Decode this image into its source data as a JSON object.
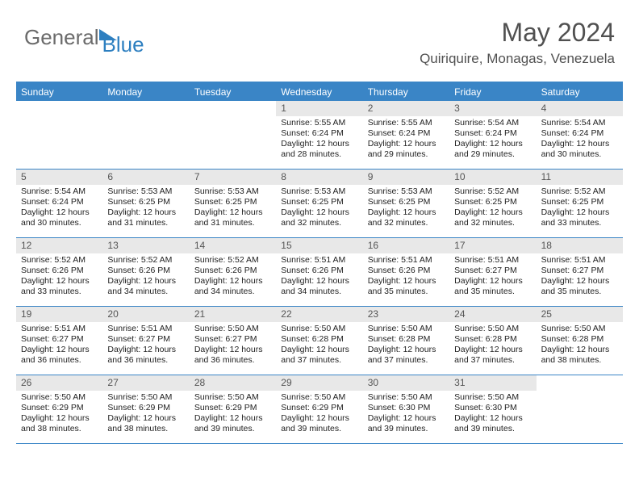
{
  "logo": {
    "part1": "General",
    "part2": "Blue"
  },
  "title": "May 2024",
  "subtitle": "Quiriquire, Monagas, Venezuela",
  "colors": {
    "header_bg": "#3a85c6",
    "header_fg": "#ffffff",
    "daynum_bg": "#e8e8e8",
    "text": "#222222",
    "logo_gray": "#6b6b6b",
    "logo_blue": "#2d7fc0"
  },
  "dayNames": [
    "Sunday",
    "Monday",
    "Tuesday",
    "Wednesday",
    "Thursday",
    "Friday",
    "Saturday"
  ],
  "weeks": [
    [
      {
        "n": "",
        "sr": "",
        "ss": "",
        "dl": ""
      },
      {
        "n": "",
        "sr": "",
        "ss": "",
        "dl": ""
      },
      {
        "n": "",
        "sr": "",
        "ss": "",
        "dl": ""
      },
      {
        "n": "1",
        "sr": "5:55 AM",
        "ss": "6:24 PM",
        "dl": "12 hours and 28 minutes."
      },
      {
        "n": "2",
        "sr": "5:55 AM",
        "ss": "6:24 PM",
        "dl": "12 hours and 29 minutes."
      },
      {
        "n": "3",
        "sr": "5:54 AM",
        "ss": "6:24 PM",
        "dl": "12 hours and 29 minutes."
      },
      {
        "n": "4",
        "sr": "5:54 AM",
        "ss": "6:24 PM",
        "dl": "12 hours and 30 minutes."
      }
    ],
    [
      {
        "n": "5",
        "sr": "5:54 AM",
        "ss": "6:24 PM",
        "dl": "12 hours and 30 minutes."
      },
      {
        "n": "6",
        "sr": "5:53 AM",
        "ss": "6:25 PM",
        "dl": "12 hours and 31 minutes."
      },
      {
        "n": "7",
        "sr": "5:53 AM",
        "ss": "6:25 PM",
        "dl": "12 hours and 31 minutes."
      },
      {
        "n": "8",
        "sr": "5:53 AM",
        "ss": "6:25 PM",
        "dl": "12 hours and 32 minutes."
      },
      {
        "n": "9",
        "sr": "5:53 AM",
        "ss": "6:25 PM",
        "dl": "12 hours and 32 minutes."
      },
      {
        "n": "10",
        "sr": "5:52 AM",
        "ss": "6:25 PM",
        "dl": "12 hours and 32 minutes."
      },
      {
        "n": "11",
        "sr": "5:52 AM",
        "ss": "6:25 PM",
        "dl": "12 hours and 33 minutes."
      }
    ],
    [
      {
        "n": "12",
        "sr": "5:52 AM",
        "ss": "6:26 PM",
        "dl": "12 hours and 33 minutes."
      },
      {
        "n": "13",
        "sr": "5:52 AM",
        "ss": "6:26 PM",
        "dl": "12 hours and 34 minutes."
      },
      {
        "n": "14",
        "sr": "5:52 AM",
        "ss": "6:26 PM",
        "dl": "12 hours and 34 minutes."
      },
      {
        "n": "15",
        "sr": "5:51 AM",
        "ss": "6:26 PM",
        "dl": "12 hours and 34 minutes."
      },
      {
        "n": "16",
        "sr": "5:51 AM",
        "ss": "6:26 PM",
        "dl": "12 hours and 35 minutes."
      },
      {
        "n": "17",
        "sr": "5:51 AM",
        "ss": "6:27 PM",
        "dl": "12 hours and 35 minutes."
      },
      {
        "n": "18",
        "sr": "5:51 AM",
        "ss": "6:27 PM",
        "dl": "12 hours and 35 minutes."
      }
    ],
    [
      {
        "n": "19",
        "sr": "5:51 AM",
        "ss": "6:27 PM",
        "dl": "12 hours and 36 minutes."
      },
      {
        "n": "20",
        "sr": "5:51 AM",
        "ss": "6:27 PM",
        "dl": "12 hours and 36 minutes."
      },
      {
        "n": "21",
        "sr": "5:50 AM",
        "ss": "6:27 PM",
        "dl": "12 hours and 36 minutes."
      },
      {
        "n": "22",
        "sr": "5:50 AM",
        "ss": "6:28 PM",
        "dl": "12 hours and 37 minutes."
      },
      {
        "n": "23",
        "sr": "5:50 AM",
        "ss": "6:28 PM",
        "dl": "12 hours and 37 minutes."
      },
      {
        "n": "24",
        "sr": "5:50 AM",
        "ss": "6:28 PM",
        "dl": "12 hours and 37 minutes."
      },
      {
        "n": "25",
        "sr": "5:50 AM",
        "ss": "6:28 PM",
        "dl": "12 hours and 38 minutes."
      }
    ],
    [
      {
        "n": "26",
        "sr": "5:50 AM",
        "ss": "6:29 PM",
        "dl": "12 hours and 38 minutes."
      },
      {
        "n": "27",
        "sr": "5:50 AM",
        "ss": "6:29 PM",
        "dl": "12 hours and 38 minutes."
      },
      {
        "n": "28",
        "sr": "5:50 AM",
        "ss": "6:29 PM",
        "dl": "12 hours and 39 minutes."
      },
      {
        "n": "29",
        "sr": "5:50 AM",
        "ss": "6:29 PM",
        "dl": "12 hours and 39 minutes."
      },
      {
        "n": "30",
        "sr": "5:50 AM",
        "ss": "6:30 PM",
        "dl": "12 hours and 39 minutes."
      },
      {
        "n": "31",
        "sr": "5:50 AM",
        "ss": "6:30 PM",
        "dl": "12 hours and 39 minutes."
      },
      {
        "n": "",
        "sr": "",
        "ss": "",
        "dl": ""
      }
    ]
  ],
  "labels": {
    "sunrise": "Sunrise:",
    "sunset": "Sunset:",
    "daylight": "Daylight:"
  }
}
